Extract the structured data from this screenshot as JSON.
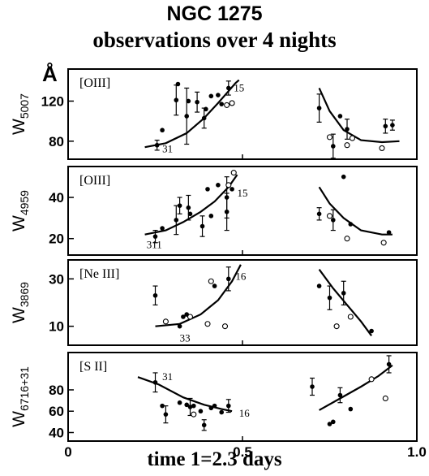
{
  "title": "NGC 1275",
  "subtitle": "observations over 4 nights",
  "y_unit": "Å",
  "xlabel": "time 1=2.3 days",
  "chart_data": {
    "type": "scatter",
    "x_range": [
      0,
      1.0
    ],
    "x_ticks": [
      0,
      0.5,
      1.0
    ],
    "x_tick_labels": [
      "0",
      "0.5",
      "1.0"
    ],
    "panels": [
      {
        "label": "[OIII]",
        "ylabel_main": "W",
        "ylabel_sub": "5007",
        "ylim": [
          62,
          152
        ],
        "yticks": [
          80,
          120
        ],
        "annotations": [
          {
            "text": "31",
            "x": 0.27,
            "y": 72
          },
          {
            "text": "15",
            "x": 0.475,
            "y": 133
          }
        ],
        "curves": [
          [
            [
              0.22,
              74
            ],
            [
              0.28,
              78
            ],
            [
              0.34,
              88
            ],
            [
              0.39,
              103
            ],
            [
              0.43,
              118
            ],
            [
              0.465,
              132
            ]
          ],
          [
            [
              0.465,
              132
            ],
            [
              0.48,
              138
            ],
            [
              0.49,
              141
            ]
          ],
          [
            [
              0.72,
              133
            ],
            [
              0.75,
              110
            ],
            [
              0.79,
              91
            ],
            [
              0.84,
              81
            ],
            [
              0.9,
              79
            ],
            [
              0.95,
              80
            ]
          ]
        ],
        "filled": [
          [
            0.255,
            76,
            5
          ],
          [
            0.27,
            91,
            0
          ],
          [
            0.31,
            121,
            15
          ],
          [
            0.315,
            137,
            0
          ],
          [
            0.34,
            105,
            28
          ],
          [
            0.345,
            120,
            0
          ],
          [
            0.37,
            119,
            10
          ],
          [
            0.39,
            103,
            10
          ],
          [
            0.395,
            112,
            0
          ],
          [
            0.41,
            125,
            0
          ],
          [
            0.43,
            126,
            0
          ],
          [
            0.44,
            117,
            0
          ],
          [
            0.46,
            133,
            7
          ],
          [
            0.72,
            113,
            14
          ],
          [
            0.76,
            75,
            12
          ],
          [
            0.78,
            105,
            0
          ],
          [
            0.8,
            92,
            10
          ],
          [
            0.91,
            95,
            7
          ],
          [
            0.93,
            96,
            5
          ]
        ],
        "open": [
          [
            0.455,
            116
          ],
          [
            0.47,
            118
          ],
          [
            0.75,
            84
          ],
          [
            0.8,
            76
          ],
          [
            0.815,
            83
          ],
          [
            0.9,
            73
          ]
        ]
      },
      {
        "label": "[OIII]",
        "ylabel_main": "W",
        "ylabel_sub": "4959",
        "ylim": [
          12,
          55
        ],
        "yticks": [
          20,
          40
        ],
        "annotations": [
          {
            "text": "311",
            "x": 0.225,
            "y": 17
          },
          {
            "text": "15",
            "x": 0.485,
            "y": 42
          }
        ],
        "curves": [
          [
            [
              0.22,
              22
            ],
            [
              0.28,
              24
            ],
            [
              0.33,
              28
            ],
            [
              0.38,
              33
            ],
            [
              0.42,
              38
            ],
            [
              0.46,
              45
            ],
            [
              0.485,
              51
            ]
          ],
          [
            [
              0.72,
              45
            ],
            [
              0.75,
              37
            ],
            [
              0.79,
              30
            ],
            [
              0.84,
              24
            ],
            [
              0.9,
              22
            ],
            [
              0.93,
              22
            ]
          ]
        ],
        "filled": [
          [
            0.25,
            21,
            3
          ],
          [
            0.27,
            25,
            0
          ],
          [
            0.31,
            29,
            7
          ],
          [
            0.32,
            36,
            4
          ],
          [
            0.345,
            35,
            6
          ],
          [
            0.35,
            32,
            0
          ],
          [
            0.385,
            26,
            5
          ],
          [
            0.4,
            44,
            0
          ],
          [
            0.41,
            31,
            0
          ],
          [
            0.43,
            46,
            0
          ],
          [
            0.455,
            40,
            10
          ],
          [
            0.455,
            33,
            9
          ],
          [
            0.47,
            44,
            0
          ],
          [
            0.72,
            32,
            3
          ],
          [
            0.76,
            29,
            5
          ],
          [
            0.79,
            50,
            0
          ],
          [
            0.81,
            27,
            0
          ],
          [
            0.92,
            23,
            0
          ]
        ],
        "open": [
          [
            0.46,
            46
          ],
          [
            0.475,
            52
          ],
          [
            0.75,
            31
          ],
          [
            0.8,
            20
          ],
          [
            0.905,
            18
          ]
        ]
      },
      {
        "label": "[Ne III]",
        "ylabel_main": "W",
        "ylabel_sub": "3869",
        "ylim": [
          2,
          38
        ],
        "yticks": [
          10,
          30
        ],
        "annotations": [
          {
            "text": "33",
            "x": 0.32,
            "y": 5
          },
          {
            "text": "16",
            "x": 0.48,
            "y": 31
          }
        ],
        "curves": [
          [
            [
              0.25,
              10
            ],
            [
              0.32,
              11
            ],
            [
              0.38,
              15
            ],
            [
              0.43,
              21
            ],
            [
              0.47,
              29
            ],
            [
              0.495,
              36
            ]
          ],
          [
            [
              0.72,
              34
            ],
            [
              0.76,
              26
            ],
            [
              0.8,
              19
            ],
            [
              0.84,
              12
            ],
            [
              0.87,
              6
            ]
          ]
        ],
        "filled": [
          [
            0.25,
            23,
            4
          ],
          [
            0.32,
            10,
            0
          ],
          [
            0.33,
            14,
            0
          ],
          [
            0.34,
            15,
            0
          ],
          [
            0.42,
            27,
            0
          ],
          [
            0.46,
            30,
            5
          ],
          [
            0.72,
            27,
            0
          ],
          [
            0.75,
            22,
            5
          ],
          [
            0.79,
            24,
            5
          ],
          [
            0.87,
            8,
            0
          ]
        ],
        "open": [
          [
            0.28,
            12
          ],
          [
            0.35,
            14
          ],
          [
            0.4,
            11
          ],
          [
            0.41,
            29
          ],
          [
            0.45,
            10
          ],
          [
            0.77,
            10
          ],
          [
            0.81,
            14
          ]
        ]
      },
      {
        "label": "[S II]",
        "ylabel_main": "W",
        "ylabel_sub": "6716+31",
        "ylim": [
          32,
          115
        ],
        "yticks": [
          40,
          60,
          80
        ],
        "annotations": [
          {
            "text": "31",
            "x": 0.27,
            "y": 92
          },
          {
            "text": "16",
            "x": 0.49,
            "y": 58
          }
        ],
        "curves": [
          [
            [
              0.2,
              92
            ],
            [
              0.26,
              85
            ],
            [
              0.33,
              73
            ],
            [
              0.39,
              66
            ],
            [
              0.44,
              62
            ],
            [
              0.47,
              60
            ]
          ],
          [
            [
              0.72,
              61
            ],
            [
              0.78,
              72
            ],
            [
              0.84,
              83
            ],
            [
              0.89,
              93
            ],
            [
              0.93,
              103
            ]
          ]
        ],
        "filled": [
          [
            0.25,
            87,
            9
          ],
          [
            0.27,
            65,
            0
          ],
          [
            0.28,
            57,
            8
          ],
          [
            0.32,
            68,
            0
          ],
          [
            0.34,
            66,
            0
          ],
          [
            0.35,
            64,
            8
          ],
          [
            0.36,
            65,
            0
          ],
          [
            0.38,
            60,
            0
          ],
          [
            0.39,
            47,
            5
          ],
          [
            0.41,
            63,
            0
          ],
          [
            0.42,
            65,
            0
          ],
          [
            0.44,
            59,
            0
          ],
          [
            0.46,
            65,
            6
          ],
          [
            0.7,
            83,
            8
          ],
          [
            0.75,
            48,
            0
          ],
          [
            0.76,
            50,
            0
          ],
          [
            0.78,
            75,
            7
          ],
          [
            0.81,
            62,
            0
          ],
          [
            0.92,
            104,
            8
          ]
        ],
        "open": [
          [
            0.36,
            57
          ],
          [
            0.87,
            90
          ],
          [
            0.91,
            72
          ]
        ]
      }
    ]
  }
}
